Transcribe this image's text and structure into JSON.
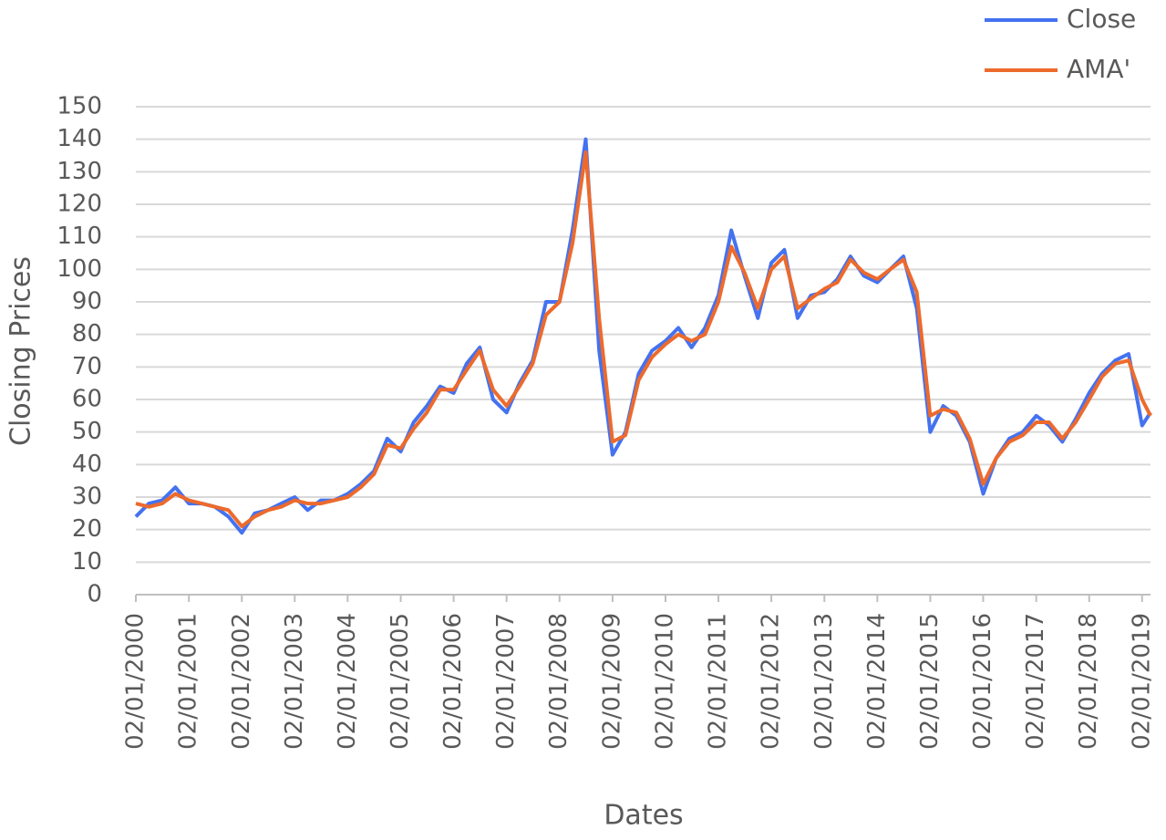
{
  "chart_data": {
    "type": "line",
    "x_label": "Dates",
    "y_label": "Closing Prices",
    "x": [
      "2000-01-02",
      "2000-04-01",
      "2000-07-01",
      "2000-10-01",
      "2001-01-02",
      "2001-04-01",
      "2001-07-01",
      "2001-10-01",
      "2002-01-02",
      "2002-04-01",
      "2002-07-01",
      "2002-10-01",
      "2003-01-02",
      "2003-04-01",
      "2003-07-01",
      "2003-10-01",
      "2004-01-02",
      "2004-04-01",
      "2004-07-01",
      "2004-10-01",
      "2005-01-02",
      "2005-04-01",
      "2005-07-01",
      "2005-10-01",
      "2006-01-02",
      "2006-04-01",
      "2006-07-01",
      "2006-10-01",
      "2007-01-02",
      "2007-04-01",
      "2007-07-01",
      "2007-10-01",
      "2008-01-02",
      "2008-04-01",
      "2008-07-01",
      "2008-10-01",
      "2009-01-02",
      "2009-04-01",
      "2009-07-01",
      "2009-10-01",
      "2010-01-02",
      "2010-04-01",
      "2010-07-01",
      "2010-10-01",
      "2011-01-02",
      "2011-04-01",
      "2011-07-01",
      "2011-10-01",
      "2012-01-02",
      "2012-04-01",
      "2012-07-01",
      "2012-10-01",
      "2013-01-02",
      "2013-04-01",
      "2013-07-01",
      "2013-10-01",
      "2014-01-02",
      "2014-04-01",
      "2014-07-01",
      "2014-10-01",
      "2015-01-02",
      "2015-04-01",
      "2015-07-01",
      "2015-10-01",
      "2016-01-02",
      "2016-04-01",
      "2016-07-01",
      "2016-10-01",
      "2017-01-02",
      "2017-04-01",
      "2017-07-01",
      "2017-10-01",
      "2018-01-02",
      "2018-04-01",
      "2018-07-01",
      "2018-10-01",
      "2019-01-02",
      "2019-03-01"
    ],
    "series": [
      {
        "name": "Close",
        "color": "#4472f0",
        "values": [
          24,
          28,
          29,
          33,
          28,
          28,
          27,
          24,
          19,
          25,
          26,
          28,
          30,
          26,
          29,
          29,
          31,
          34,
          38,
          48,
          44,
          53,
          58,
          64,
          62,
          71,
          76,
          60,
          56,
          65,
          72,
          90,
          90,
          112,
          140,
          75,
          43,
          50,
          68,
          75,
          78,
          82,
          76,
          82,
          92,
          112,
          98,
          85,
          102,
          106,
          85,
          92,
          93,
          97,
          104,
          98,
          96,
          100,
          104,
          88,
          50,
          58,
          55,
          47,
          31,
          42,
          48,
          50,
          55,
          52,
          47,
          54,
          62,
          68,
          72,
          74,
          52,
          56
        ]
      },
      {
        "name": "AMA'",
        "color": "#ed6a2c",
        "values": [
          28,
          27,
          28,
          31,
          29,
          28,
          27,
          26,
          21,
          24,
          26,
          27,
          29,
          28,
          28,
          29,
          30,
          33,
          37,
          46,
          45,
          51,
          56,
          63,
          63,
          69,
          75,
          63,
          58,
          64,
          71,
          86,
          90,
          108,
          136,
          85,
          47,
          49,
          66,
          73,
          77,
          80,
          78,
          80,
          90,
          107,
          99,
          88,
          100,
          104,
          88,
          91,
          94,
          96,
          103,
          99,
          97,
          100,
          103,
          93,
          55,
          57,
          56,
          48,
          34,
          42,
          47,
          49,
          53,
          53,
          48,
          53,
          60,
          67,
          71,
          72,
          60,
          55
        ]
      }
    ],
    "xlim": [
      "2000-01-02",
      "2019-03-01"
    ],
    "xticks": [
      {
        "value": "2000-01-02",
        "label": "02/01/2000"
      },
      {
        "value": "2001-01-02",
        "label": "02/01/2001"
      },
      {
        "value": "2002-01-02",
        "label": "02/01/2002"
      },
      {
        "value": "2003-01-02",
        "label": "02/01/2003"
      },
      {
        "value": "2004-01-02",
        "label": "02/01/2004"
      },
      {
        "value": "2005-01-02",
        "label": "02/01/2005"
      },
      {
        "value": "2006-01-02",
        "label": "02/01/2006"
      },
      {
        "value": "2007-01-02",
        "label": "02/01/2007"
      },
      {
        "value": "2008-01-02",
        "label": "02/01/2008"
      },
      {
        "value": "2009-01-02",
        "label": "02/01/2009"
      },
      {
        "value": "2010-01-02",
        "label": "02/01/2010"
      },
      {
        "value": "2011-01-02",
        "label": "02/01/2011"
      },
      {
        "value": "2012-01-02",
        "label": "02/01/2012"
      },
      {
        "value": "2013-01-02",
        "label": "02/01/2013"
      },
      {
        "value": "2014-01-02",
        "label": "02/01/2014"
      },
      {
        "value": "2015-01-02",
        "label": "02/01/2015"
      },
      {
        "value": "2016-01-02",
        "label": "02/01/2016"
      },
      {
        "value": "2017-01-02",
        "label": "02/01/2017"
      },
      {
        "value": "2018-01-02",
        "label": "02/01/2018"
      },
      {
        "value": "2019-01-02",
        "label": "02/01/2019"
      }
    ],
    "ylim": [
      0,
      150
    ],
    "yticks": [
      0,
      10,
      20,
      30,
      40,
      50,
      60,
      70,
      80,
      90,
      100,
      110,
      120,
      130,
      140,
      150
    ],
    "grid": true,
    "legend": "top-right"
  }
}
